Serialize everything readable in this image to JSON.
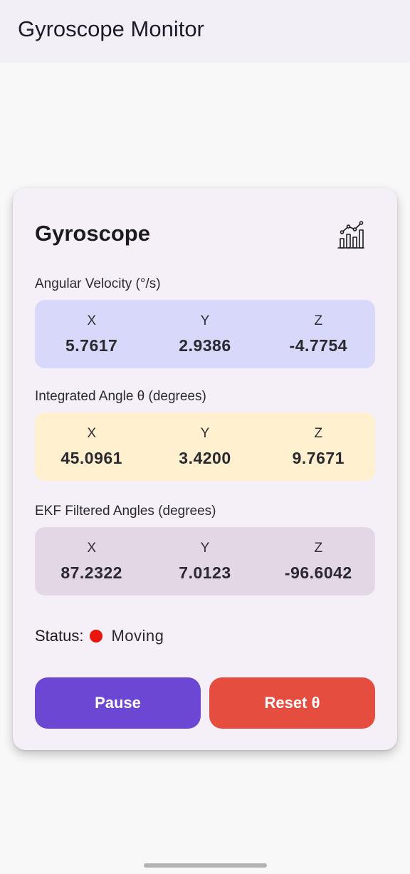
{
  "app": {
    "title": "Gyroscope Monitor"
  },
  "card": {
    "title": "Gyroscope",
    "chart_icon": "bar-chart-trend-icon"
  },
  "sections": {
    "angular_velocity": {
      "label": "Angular Velocity (°/s)",
      "color": "#d8d9fa",
      "axes": [
        {
          "label": "X",
          "value": "5.7617"
        },
        {
          "label": "Y",
          "value": "2.9386"
        },
        {
          "label": "Z",
          "value": "-4.7754"
        }
      ]
    },
    "integrated_angle": {
      "label": "Integrated Angle θ (degrees)",
      "color": "#fff1cf",
      "axes": [
        {
          "label": "X",
          "value": "45.0961"
        },
        {
          "label": "Y",
          "value": "3.4200"
        },
        {
          "label": "Z",
          "value": "9.7671"
        }
      ]
    },
    "ekf_filtered": {
      "label": "EKF Filtered Angles (degrees)",
      "color": "#e3d7e6",
      "axes": [
        {
          "label": "X",
          "value": "87.2322"
        },
        {
          "label": "Y",
          "value": "7.0123"
        },
        {
          "label": "Z",
          "value": "-96.6042"
        }
      ]
    }
  },
  "status": {
    "label": "Status:",
    "value": "Moving",
    "indicator_color": "#e8160c"
  },
  "buttons": {
    "pause": {
      "label": "Pause",
      "color": "#6c47d4"
    },
    "reset": {
      "label": "Reset θ",
      "color": "#e54d3e"
    }
  }
}
